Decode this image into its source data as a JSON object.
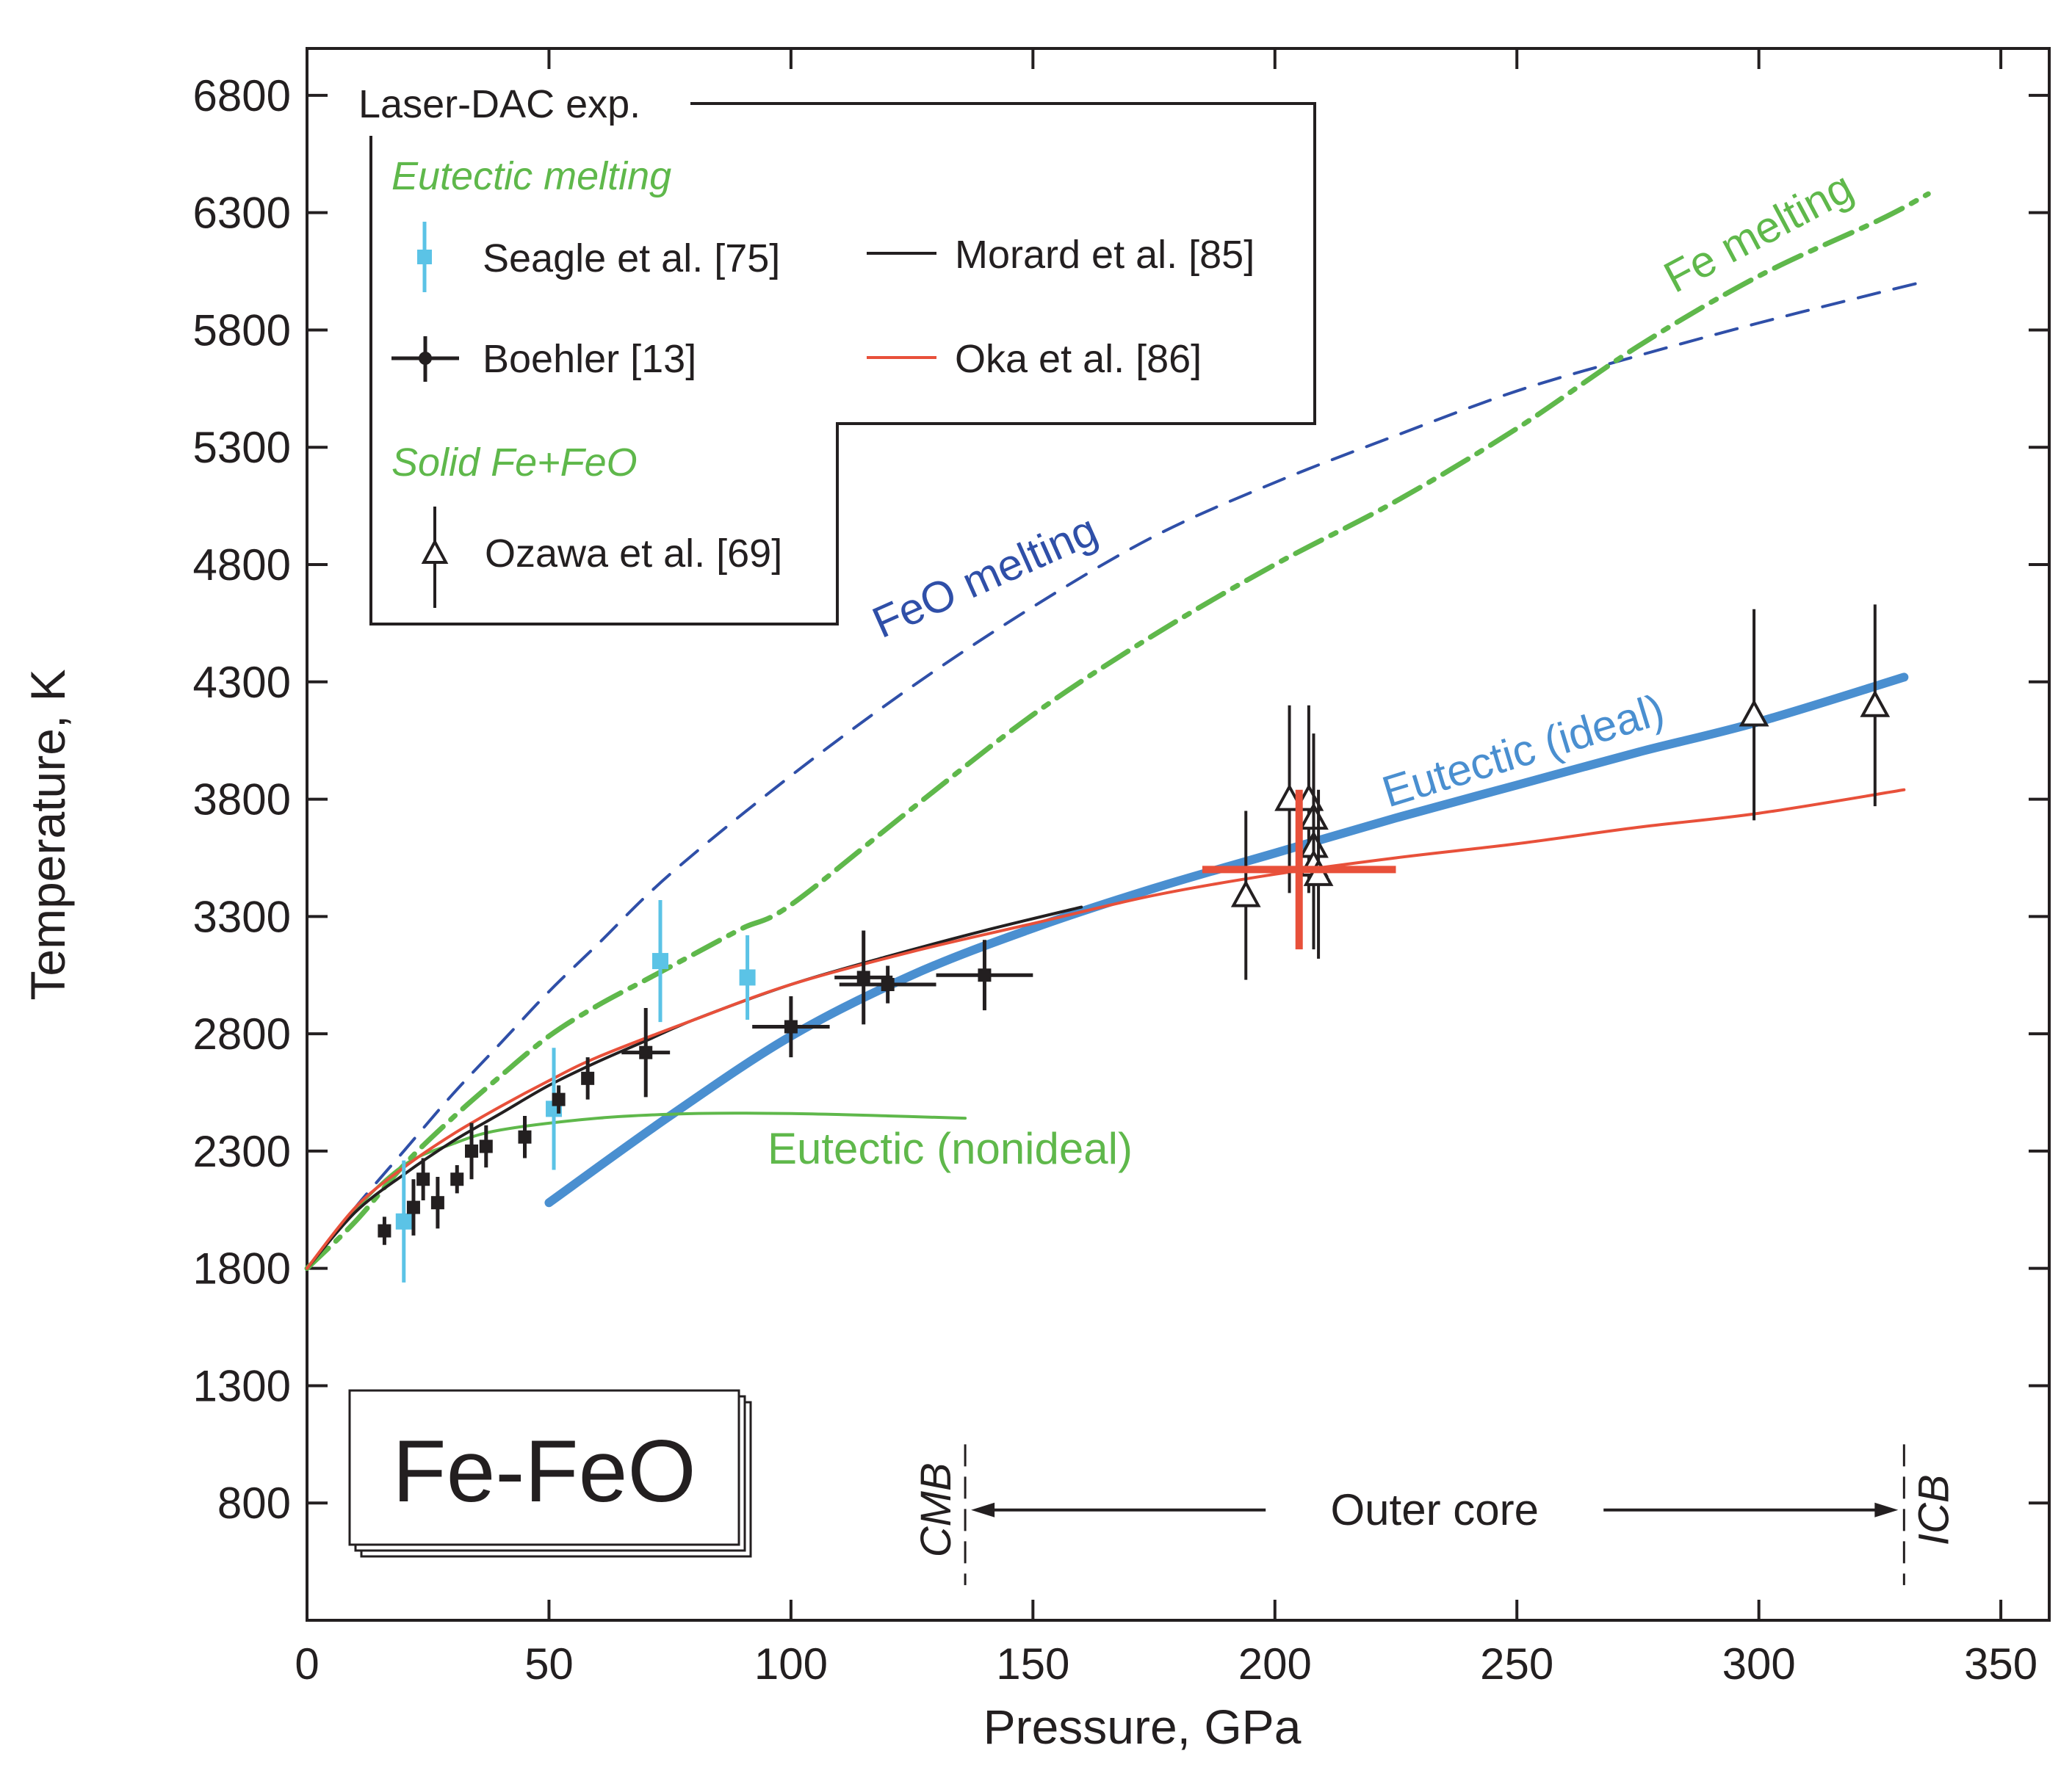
{
  "chart_data": {
    "type": "line",
    "xlabel": "Pressure, GPa",
    "ylabel": "Temperature, K",
    "xlim": [
      0,
      360
    ],
    "ylim": [
      300,
      7000
    ],
    "xticks": [
      0,
      50,
      100,
      150,
      200,
      250,
      300,
      350
    ],
    "yticks": [
      800,
      1300,
      1800,
      2300,
      2800,
      3300,
      3800,
      4300,
      4800,
      5300,
      5800,
      6300,
      6800
    ],
    "colors": {
      "feo_melting": "#2f4fa8",
      "fe_melting": "#5fb84b",
      "eutectic_ideal": "#4a8fd0",
      "eutectic_nonideal": "#5fb84b",
      "morard": "#231f20",
      "oka": "#e8503a",
      "seagle": "#5bc3e6",
      "boehler": "#231f20",
      "ozawa": "#231f20"
    },
    "legend": {
      "title": "Laser-DAC exp.",
      "group_eutectic": "Eutectic melting",
      "group_solid": "Solid Fe+FeO",
      "seagle": "Seagle et al. [75]",
      "boehler": "Boehler [13]",
      "morard": "Morard et al. [85]",
      "oka": "Oka et al. [86]",
      "ozawa": "Ozawa et al. [69]"
    },
    "annotations": {
      "system": "Fe-FeO",
      "outer_core": "Outer core",
      "cmb": "CMB",
      "icb": "ICB",
      "feo_melting": "FeO melting",
      "fe_melting": "Fe melting",
      "eutectic_ideal": "Eutectic (ideal)",
      "eutectic_nonideal": "Eutectic (nonideal)",
      "cmb_pressure": 136,
      "icb_pressure": 330
    },
    "series": [
      {
        "name": "FeO melting",
        "style": "dashed",
        "x": [
          0,
          10,
          20,
          30,
          40,
          50,
          60,
          75,
          100,
          125,
          150,
          175,
          200,
          225,
          250,
          275,
          300,
          325,
          335
        ],
        "y": [
          1800,
          2060,
          2300,
          2540,
          2760,
          2980,
          3180,
          3480,
          3900,
          4280,
          4620,
          4920,
          5150,
          5350,
          5540,
          5690,
          5830,
          5960,
          6010
        ]
      },
      {
        "name": "Fe melting",
        "style": "dashdot",
        "x": [
          0,
          10,
          20,
          30,
          40,
          50,
          60,
          70,
          80,
          90,
          100,
          125,
          150,
          175,
          200,
          225,
          250,
          275,
          300,
          325,
          335
        ],
        "y": [
          1800,
          2000,
          2240,
          2440,
          2620,
          2790,
          2920,
          3030,
          3140,
          3250,
          3350,
          3760,
          4160,
          4500,
          4800,
          5070,
          5380,
          5730,
          6030,
          6270,
          6380
        ]
      },
      {
        "name": "Eutectic (ideal)",
        "style": "thick",
        "x": [
          50,
          75,
          100,
          125,
          150,
          175,
          200,
          225,
          250,
          275,
          300,
          330
        ],
        "y": [
          2080,
          2450,
          2790,
          3050,
          3250,
          3420,
          3570,
          3720,
          3860,
          4000,
          4130,
          4320
        ]
      },
      {
        "name": "Eutectic (nonideal)",
        "style": "solid",
        "x": [
          0,
          10,
          20,
          30,
          40,
          60,
          80,
          100,
          120,
          136
        ],
        "y": [
          1800,
          2050,
          2240,
          2330,
          2390,
          2440,
          2460,
          2460,
          2450,
          2440
        ]
      },
      {
        "name": "Morard et al. [85]",
        "style": "solid",
        "x": [
          0,
          10,
          20,
          30,
          40,
          50,
          60,
          70,
          80,
          100,
          120,
          140,
          160
        ],
        "y": [
          1800,
          2040,
          2200,
          2340,
          2460,
          2580,
          2680,
          2770,
          2860,
          3010,
          3130,
          3240,
          3340
        ]
      },
      {
        "name": "Oka et al. [86]",
        "style": "solid",
        "x": [
          0,
          10,
          20,
          30,
          40,
          50,
          60,
          80,
          100,
          125,
          150,
          175,
          200,
          225,
          250,
          275,
          300,
          330
        ],
        "y": [
          1800,
          2060,
          2230,
          2370,
          2490,
          2600,
          2700,
          2860,
          3010,
          3150,
          3270,
          3390,
          3480,
          3550,
          3610,
          3680,
          3740,
          3840
        ]
      },
      {
        "name": "Seagle et al. [75]",
        "style": "points",
        "points": [
          [
            20,
            2000,
            260
          ],
          [
            51,
            2480,
            260
          ],
          [
            73,
            3110,
            260
          ],
          [
            91,
            3040,
            180
          ]
        ]
      },
      {
        "name": "Boehler [13]",
        "style": "points",
        "points": [
          [
            16,
            1960,
            60,
            2
          ],
          [
            22,
            2060,
            120,
            2
          ],
          [
            24,
            2180,
            90,
            2
          ],
          [
            27,
            2080,
            110,
            2
          ],
          [
            31,
            2180,
            60,
            2
          ],
          [
            34,
            2300,
            120,
            2
          ],
          [
            37,
            2320,
            90,
            2
          ],
          [
            45,
            2360,
            90,
            2
          ],
          [
            52,
            2520,
            60,
            2
          ],
          [
            58,
            2610,
            90,
            2
          ],
          [
            70,
            2720,
            190,
            5
          ],
          [
            100,
            2830,
            130,
            8
          ],
          [
            115,
            3040,
            200,
            6
          ],
          [
            120,
            3010,
            80,
            10
          ],
          [
            140,
            3050,
            150,
            10
          ]
        ]
      },
      {
        "name": "Ozawa et al. [69]",
        "style": "points",
        "points": [
          [
            194,
            3390,
            360
          ],
          [
            203,
            3800,
            400
          ],
          [
            207,
            3800,
            400
          ],
          [
            208,
            3720,
            360
          ],
          [
            208,
            3600,
            360
          ],
          [
            208,
            3520,
            360
          ],
          [
            209,
            3480,
            360
          ],
          [
            299,
            4160,
            450
          ],
          [
            324,
            4200,
            430
          ]
        ]
      },
      {
        "name": "Oka et al. [86] point",
        "style": "cross",
        "points": [
          [
            205,
            3500,
            340,
            20
          ]
        ]
      }
    ]
  }
}
